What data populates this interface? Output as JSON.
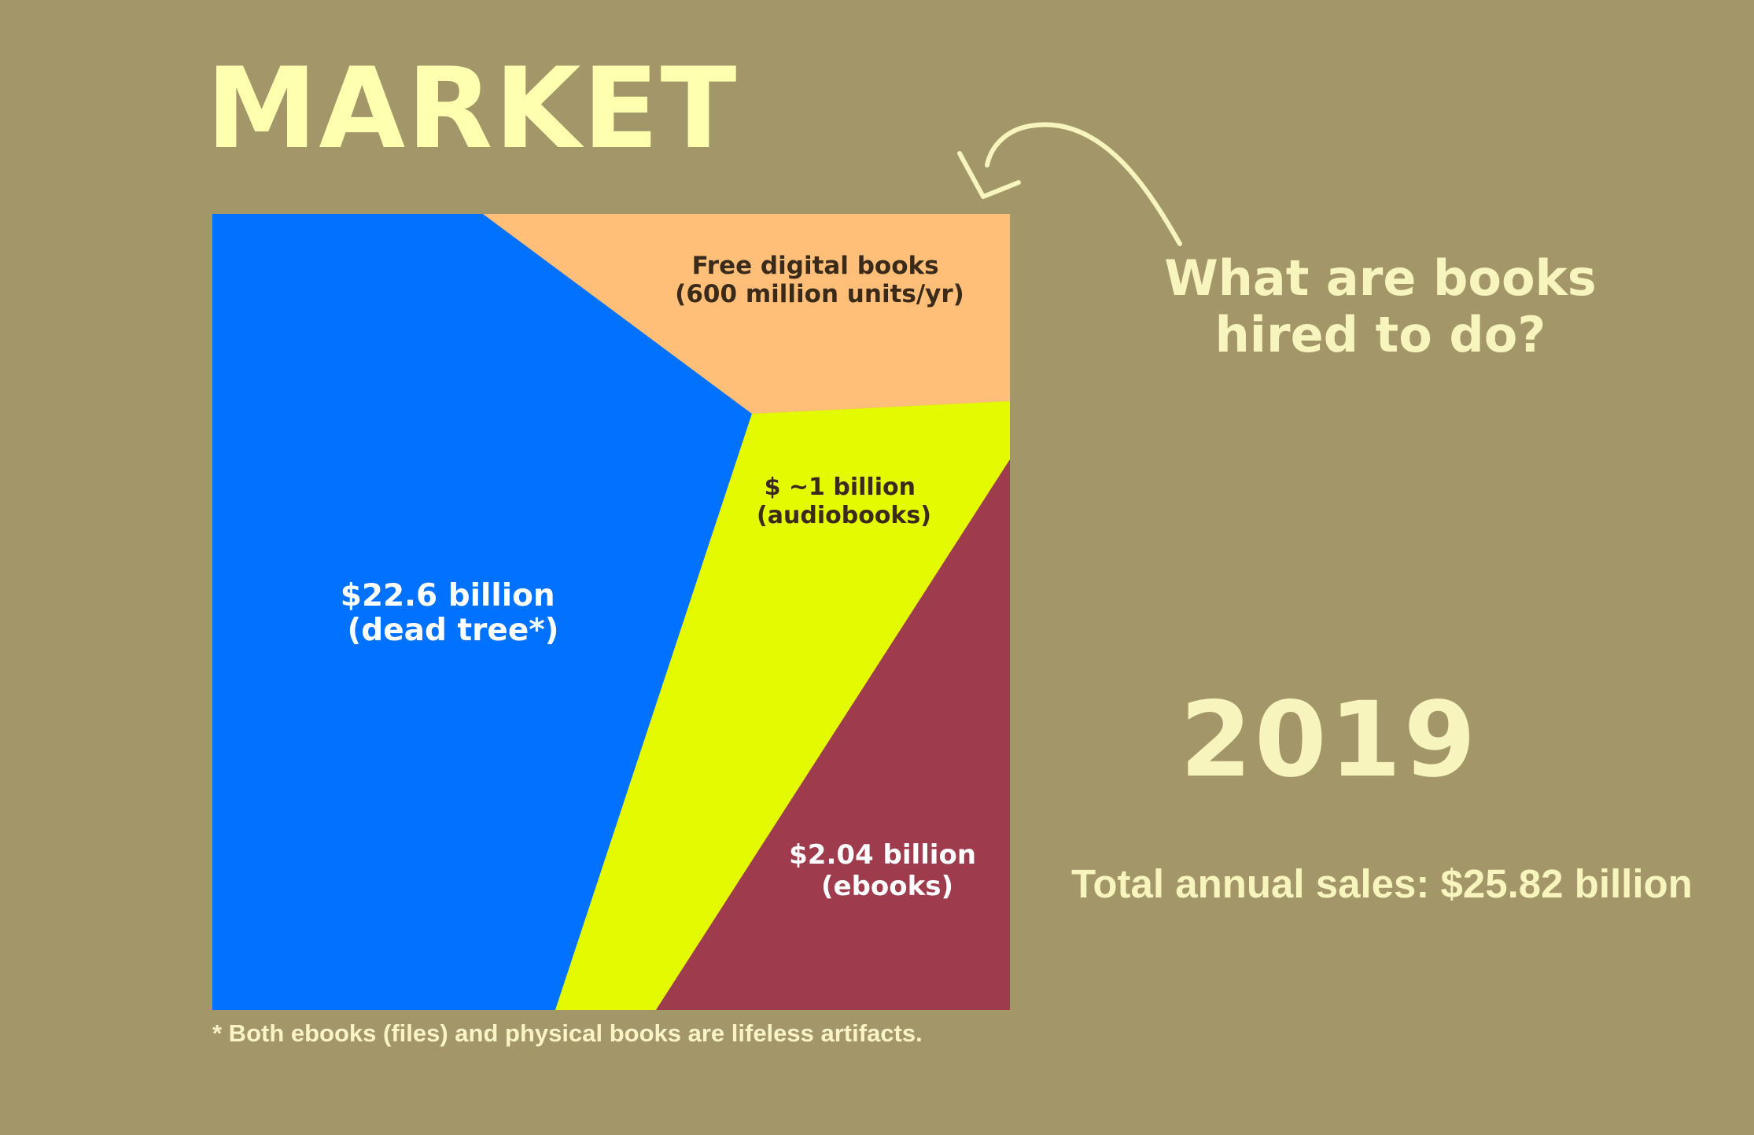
{
  "title": "MARKET",
  "question_line1": "What are books",
  "question_line2": "hired to do?",
  "year": "2019",
  "total_sales": "Total annual sales: $25.82 billion",
  "footnote": "* Both ebooks (files) and physical books are lifeless artifacts.",
  "colors": {
    "background": "#A39669",
    "dead_tree": "#0072FF",
    "free_digital": "#FFBF78",
    "audiobooks": "#E4FA00",
    "ebooks": "#9E3B4D"
  },
  "icons": {
    "arrow": "curved-arrow-icon"
  },
  "chart_data": {
    "type": "area",
    "title": "MARKET",
    "segments": [
      {
        "key": "dead_tree",
        "line1": "$22.6 billion",
        "line2": "(dead tree*)",
        "value_billion_usd": 22.6,
        "text_color": "#FFFFFF"
      },
      {
        "key": "free_digital",
        "line1": "Free digital books",
        "line2": "(600 million units/yr)",
        "units_millions_per_year": 600,
        "text_color": "#3A2A1A"
      },
      {
        "key": "audiobooks",
        "line1": "$ ~1 billion",
        "line2": "(audiobooks)",
        "value_billion_usd": 1,
        "text_color": "#3A2A1A"
      },
      {
        "key": "ebooks",
        "line1": "$2.04 billion",
        "line2": "(ebooks)",
        "value_billion_usd": 2.04,
        "text_color": "#FFFFFF"
      }
    ],
    "total_billion_usd": 25.82,
    "year": 2019
  }
}
